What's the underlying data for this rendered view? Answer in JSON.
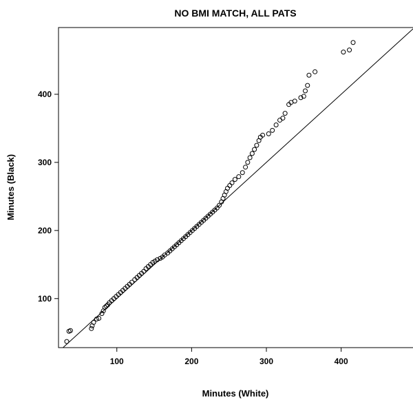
{
  "chart_data": {
    "type": "scatter",
    "title": "NO BMI MATCH, ALL PATS",
    "xlabel": "Minutes (White)",
    "ylabel": "Minutes (Black)",
    "xlim": [
      22,
      497
    ],
    "ylim": [
      28,
      498
    ],
    "xticks": [
      100,
      200,
      300,
      400
    ],
    "yticks": [
      100,
      200,
      300,
      400
    ],
    "grid": false,
    "reference_line": {
      "label": "",
      "slope": 1,
      "intercept": 0
    },
    "series": [
      {
        "points": [
          [
            33,
            37
          ],
          [
            36,
            52
          ],
          [
            38,
            53
          ],
          [
            66,
            56
          ],
          [
            67,
            60
          ],
          [
            69,
            65
          ],
          [
            73,
            70
          ],
          [
            76,
            71
          ],
          [
            80,
            78
          ],
          [
            82,
            82
          ],
          [
            84,
            87
          ],
          [
            86,
            89
          ],
          [
            88,
            91
          ],
          [
            90,
            94
          ],
          [
            93,
            97
          ],
          [
            96,
            100
          ],
          [
            99,
            103
          ],
          [
            102,
            106
          ],
          [
            105,
            109
          ],
          [
            108,
            112
          ],
          [
            111,
            115
          ],
          [
            114,
            118
          ],
          [
            117,
            121
          ],
          [
            120,
            124
          ],
          [
            124,
            128
          ],
          [
            127,
            131
          ],
          [
            130,
            134
          ],
          [
            133,
            137
          ],
          [
            136,
            140
          ],
          [
            139,
            144
          ],
          [
            142,
            147
          ],
          [
            145,
            150
          ],
          [
            148,
            153
          ],
          [
            151,
            155
          ],
          [
            154,
            157
          ],
          [
            158,
            159
          ],
          [
            161,
            161
          ],
          [
            164,
            164
          ],
          [
            168,
            167
          ],
          [
            171,
            170
          ],
          [
            174,
            173
          ],
          [
            177,
            176
          ],
          [
            180,
            179
          ],
          [
            183,
            182
          ],
          [
            186,
            185
          ],
          [
            189,
            188
          ],
          [
            192,
            191
          ],
          [
            195,
            194
          ],
          [
            198,
            197
          ],
          [
            201,
            200
          ],
          [
            204,
            203
          ],
          [
            207,
            206
          ],
          [
            210,
            209
          ],
          [
            213,
            212
          ],
          [
            216,
            215
          ],
          [
            219,
            218
          ],
          [
            222,
            221
          ],
          [
            225,
            224
          ],
          [
            228,
            227
          ],
          [
            231,
            230
          ],
          [
            234,
            233
          ],
          [
            237,
            237
          ],
          [
            240,
            242
          ],
          [
            242,
            247
          ],
          [
            244,
            252
          ],
          [
            246,
            257
          ],
          [
            248,
            262
          ],
          [
            251,
            266
          ],
          [
            254,
            270
          ],
          [
            258,
            275
          ],
          [
            263,
            279
          ],
          [
            268,
            285
          ],
          [
            272,
            293
          ],
          [
            275,
            300
          ],
          [
            278,
            307
          ],
          [
            281,
            313
          ],
          [
            284,
            319
          ],
          [
            287,
            325
          ],
          [
            290,
            332
          ],
          [
            292,
            337
          ],
          [
            295,
            340
          ],
          [
            303,
            342
          ],
          [
            308,
            347
          ],
          [
            313,
            355
          ],
          [
            318,
            362
          ],
          [
            322,
            365
          ],
          [
            325,
            372
          ],
          [
            330,
            385
          ],
          [
            333,
            388
          ],
          [
            338,
            390
          ],
          [
            346,
            395
          ],
          [
            350,
            397
          ],
          [
            352,
            405
          ],
          [
            355,
            413
          ],
          [
            357,
            428
          ],
          [
            365,
            433
          ],
          [
            403,
            462
          ],
          [
            411,
            465
          ],
          [
            416,
            476
          ]
        ]
      }
    ]
  }
}
